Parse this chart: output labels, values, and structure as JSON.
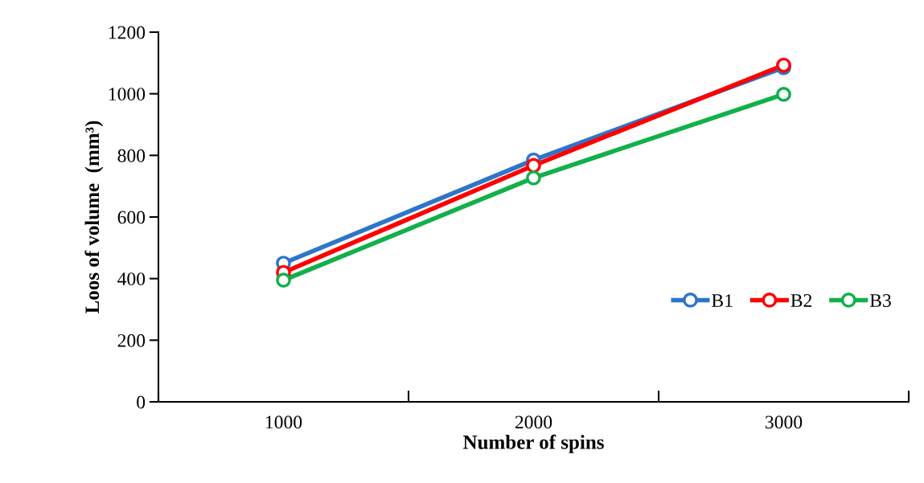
{
  "chart_data": {
    "type": "line",
    "xlabel": "Number of spins",
    "ylabel": "Loos of volume  (mm³)",
    "x": [
      1000,
      2000,
      3000
    ],
    "series": [
      {
        "name": "B1",
        "color": "#2e75c8",
        "values": [
          450,
          785,
          1085
        ]
      },
      {
        "name": "B2",
        "color": "#ff0000",
        "values": [
          420,
          767,
          1093
        ]
      },
      {
        "name": "B3",
        "color": "#12b04a",
        "values": [
          395,
          727,
          998
        ]
      }
    ],
    "xlim": [
      500,
      3500
    ],
    "xticks": [
      {
        "value": 500,
        "label": null
      },
      1000,
      {
        "value": 1500,
        "label": null
      },
      2000,
      {
        "value": 2500,
        "label": null
      },
      3000,
      {
        "value": 3500,
        "label": null
      }
    ],
    "ylim": [
      0,
      1200
    ],
    "yticks": [
      0,
      200,
      400,
      600,
      800,
      1000,
      1200
    ],
    "grid": false,
    "legend": "bottom right",
    "marker": "circle",
    "line_style": "solid"
  }
}
